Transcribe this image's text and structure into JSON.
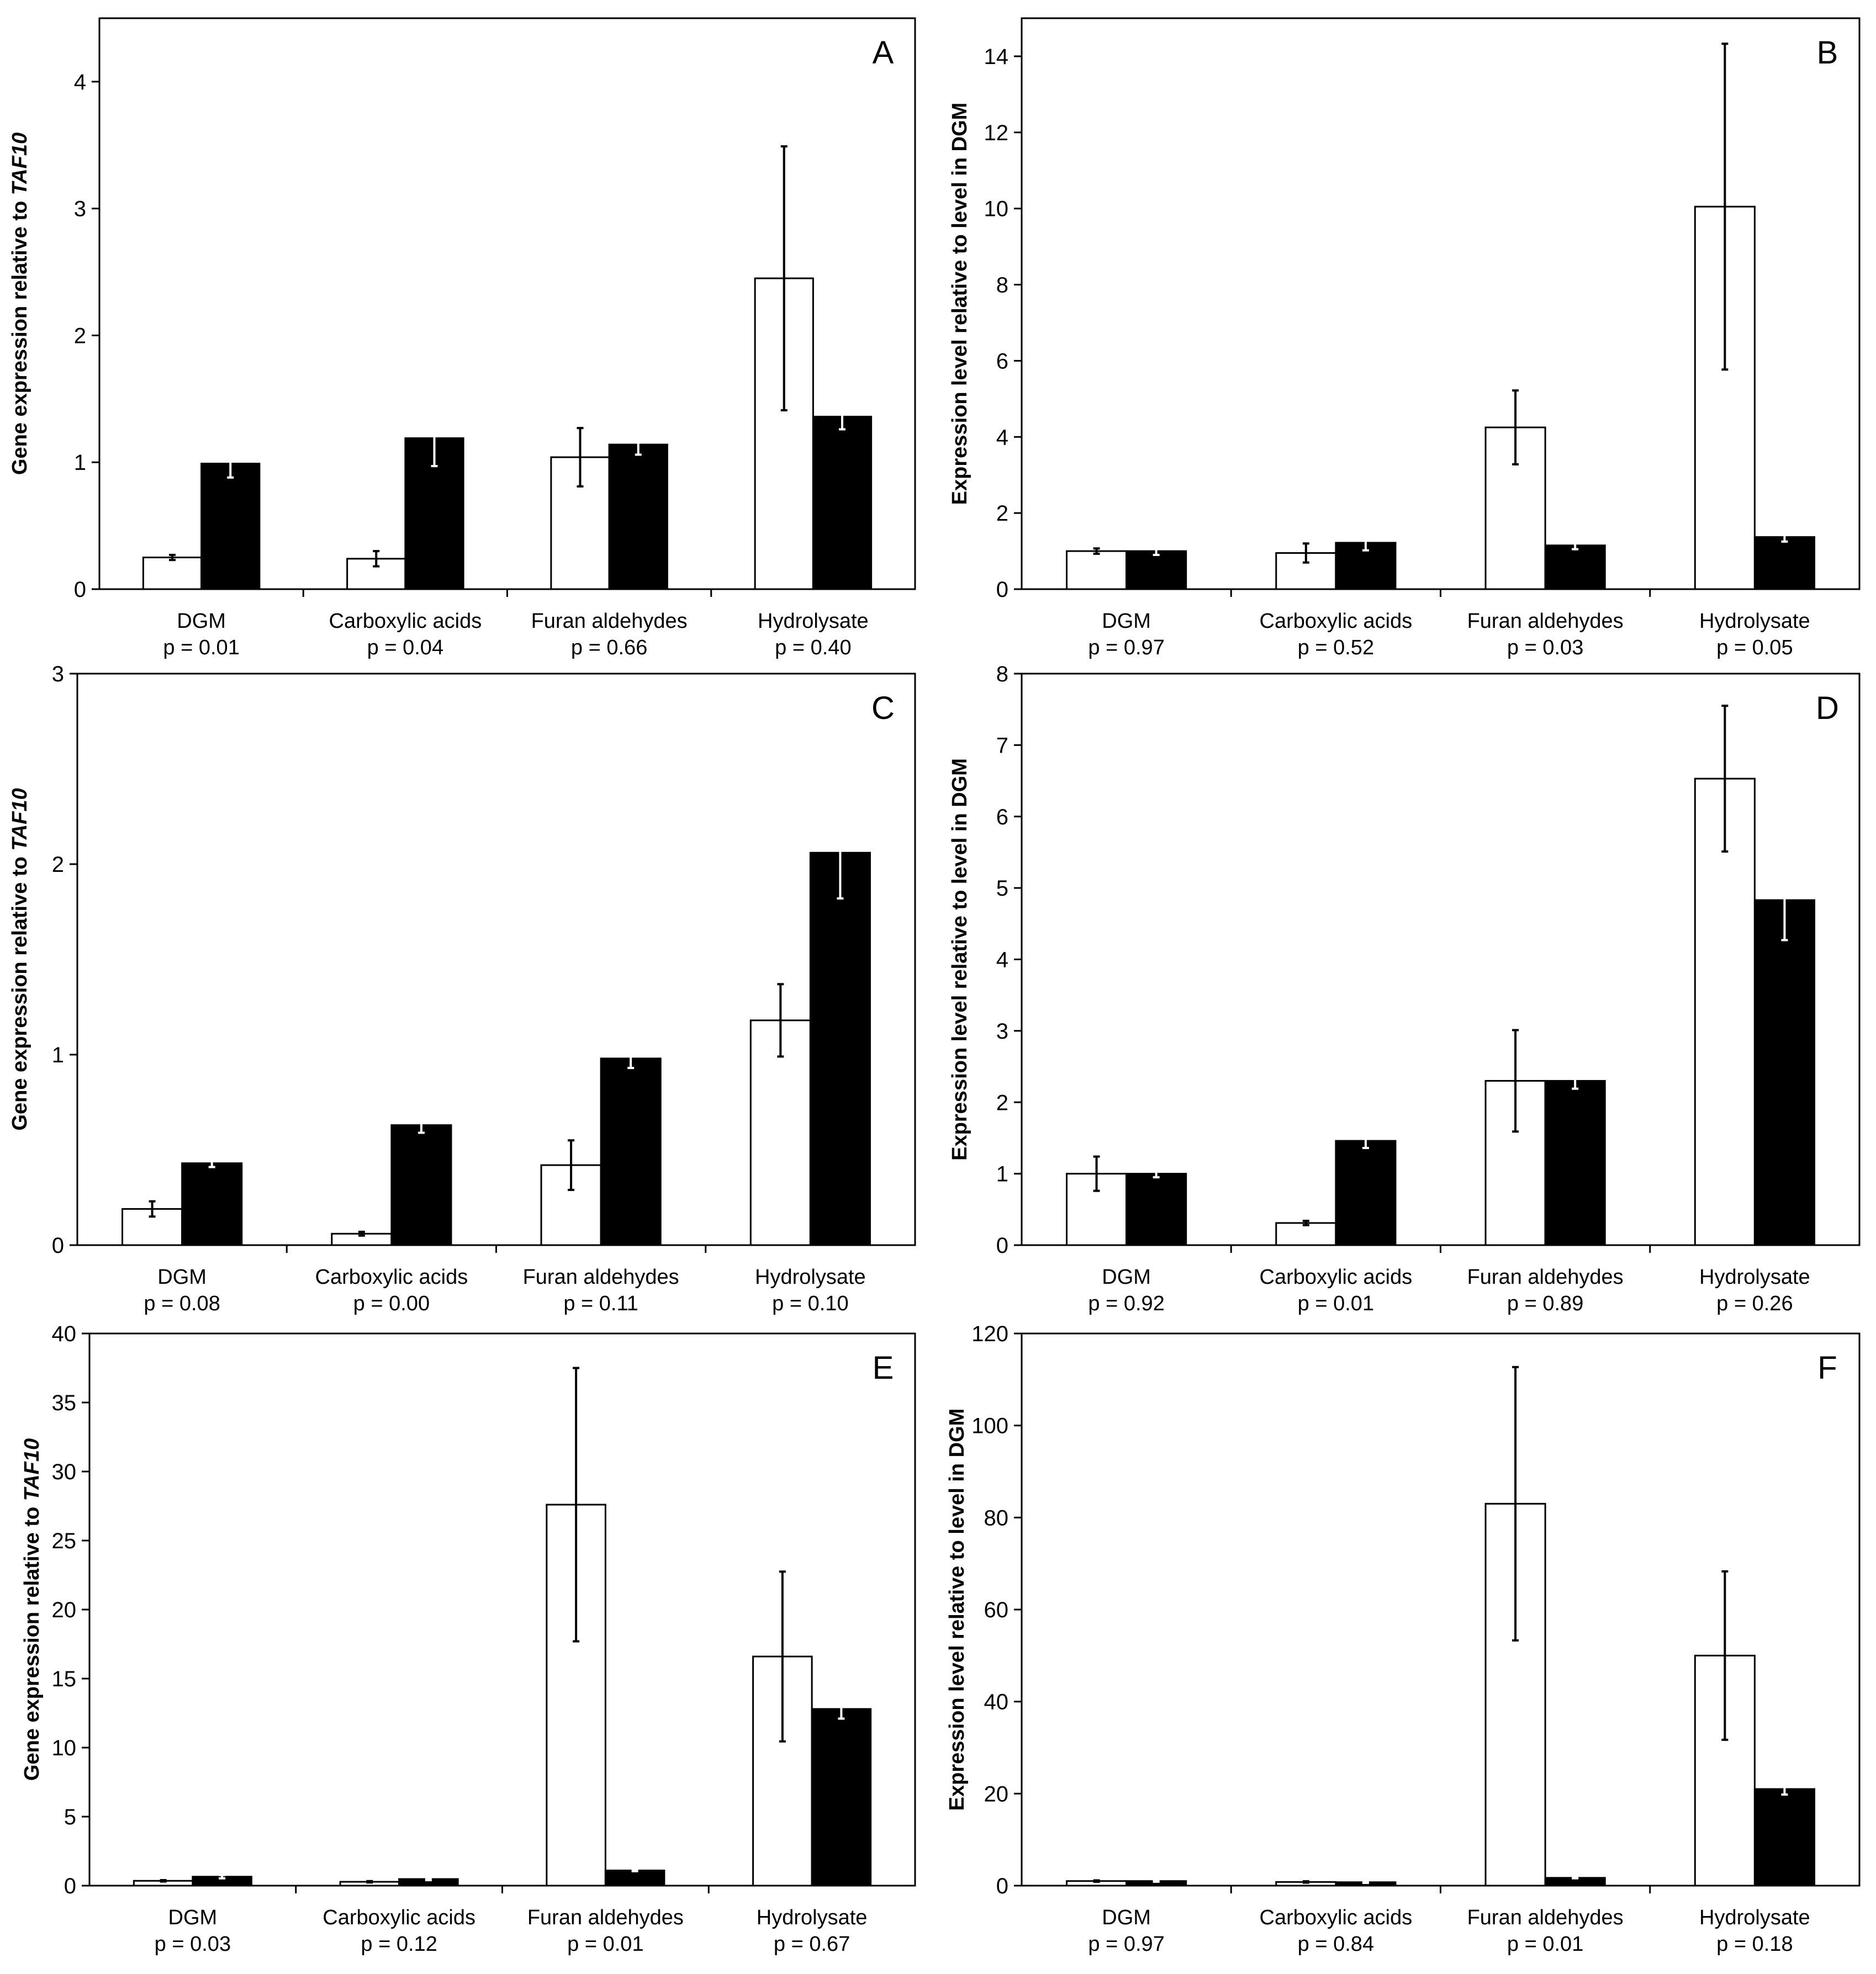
{
  "chart_data": [
    {
      "type": "bar",
      "panel": "A",
      "ylabel": "Gene expression relative to TAF10",
      "ylabel_plain": "Gene expression relative to ",
      "ylabel_italic": "TAF10",
      "ylim": [
        0,
        4.5
      ],
      "yticks": [
        0,
        1,
        2,
        3,
        4
      ],
      "categories": [
        "DGM",
        "Carboxylic acids",
        "Furan aldehydes",
        "Hydrolysate"
      ],
      "pvalues": [
        "p = 0.01",
        "p = 0.04",
        "p = 0.66",
        "p = 0.40"
      ],
      "series": [
        {
          "name": "white",
          "fill": "#ffffff",
          "values": [
            0.25,
            0.24,
            1.04,
            2.45
          ],
          "errors": [
            0.02,
            0.06,
            0.23,
            1.04
          ]
        },
        {
          "name": "black",
          "fill": "#000000",
          "values": [
            0.99,
            1.19,
            1.14,
            1.36
          ],
          "errors": [
            0.11,
            0.22,
            0.08,
            0.1
          ]
        }
      ]
    },
    {
      "type": "bar",
      "panel": "B",
      "ylabel": "Expression level relative to level in DGM",
      "ylim": [
        0,
        15
      ],
      "yticks": [
        0,
        2,
        4,
        6,
        8,
        10,
        12,
        14
      ],
      "categories": [
        "DGM",
        "Carboxylic acids",
        "Furan aldehydes",
        "Hydrolysate"
      ],
      "pvalues": [
        "p = 0.97",
        "p = 0.52",
        "p = 0.03",
        "p = 0.05"
      ],
      "series": [
        {
          "name": "white",
          "fill": "#ffffff",
          "values": [
            1.0,
            0.95,
            4.25,
            10.05
          ],
          "errors": [
            0.07,
            0.25,
            0.97,
            4.28
          ]
        },
        {
          "name": "black",
          "fill": "#000000",
          "values": [
            1.0,
            1.22,
            1.15,
            1.37
          ],
          "errors": [
            0.1,
            0.2,
            0.1,
            0.12
          ]
        }
      ]
    },
    {
      "type": "bar",
      "panel": "C",
      "ylabel": "Gene expression relative to TAF10",
      "ylabel_plain": "Gene expression relative to ",
      "ylabel_italic": "TAF10",
      "ylim": [
        0,
        3
      ],
      "yticks": [
        0,
        1,
        2,
        3
      ],
      "categories": [
        "DGM",
        "Carboxylic acids",
        "Furan aldehydes",
        "Hydrolysate"
      ],
      "pvalues": [
        "p = 0.08",
        "p = 0.00",
        "p = 0.11",
        "p = 0.10"
      ],
      "series": [
        {
          "name": "white",
          "fill": "#ffffff",
          "values": [
            0.19,
            0.06,
            0.42,
            1.18
          ],
          "errors": [
            0.04,
            0.01,
            0.13,
            0.19
          ]
        },
        {
          "name": "black",
          "fill": "#000000",
          "values": [
            0.43,
            0.63,
            0.98,
            2.06
          ],
          "errors": [
            0.02,
            0.04,
            0.05,
            0.24
          ]
        }
      ]
    },
    {
      "type": "bar",
      "panel": "D",
      "ylabel": "Expression level relative to level in DGM",
      "ylim": [
        0,
        8
      ],
      "yticks": [
        0,
        1,
        2,
        3,
        4,
        5,
        6,
        7,
        8
      ],
      "categories": [
        "DGM",
        "Carboxylic acids",
        "Furan aldehydes",
        "Hydrolysate"
      ],
      "pvalues": [
        "p = 0.92",
        "p = 0.01",
        "p = 0.89",
        "p = 0.26"
      ],
      "series": [
        {
          "name": "white",
          "fill": "#ffffff",
          "values": [
            1.0,
            0.31,
            2.3,
            6.53
          ],
          "errors": [
            0.24,
            0.03,
            0.71,
            1.02
          ]
        },
        {
          "name": "black",
          "fill": "#000000",
          "values": [
            1.0,
            1.46,
            2.3,
            4.83
          ],
          "errors": [
            0.05,
            0.1,
            0.11,
            0.56
          ]
        }
      ]
    },
    {
      "type": "bar",
      "panel": "E",
      "ylabel": "Gene expression relative to TAF10",
      "ylabel_plain": "Gene expression relative to ",
      "ylabel_italic": "TAF10",
      "ylim": [
        0,
        40
      ],
      "yticks": [
        0,
        5,
        10,
        15,
        20,
        25,
        30,
        35,
        40
      ],
      "categories": [
        "DGM",
        "Carboxylic acids",
        "Furan aldehydes",
        "Hydrolysate"
      ],
      "pvalues": [
        "p = 0.03",
        "p = 0.12",
        "p = 0.01",
        "p = 0.67"
      ],
      "series": [
        {
          "name": "white",
          "fill": "#ffffff",
          "values": [
            0.35,
            0.28,
            27.6,
            16.6
          ],
          "errors": [
            0.05,
            0.05,
            9.9,
            6.15
          ]
        },
        {
          "name": "black",
          "fill": "#000000",
          "values": [
            0.65,
            0.48,
            1.1,
            12.8
          ],
          "errors": [
            0.12,
            0.08,
            0.05,
            0.7
          ]
        }
      ]
    },
    {
      "type": "bar",
      "panel": "F",
      "ylabel": "Expression level relative to level in DGM",
      "ylim": [
        0,
        120
      ],
      "yticks": [
        0,
        20,
        40,
        60,
        80,
        100,
        120
      ],
      "categories": [
        "DGM",
        "Carboxylic acids",
        "Furan aldehydes",
        "Hydrolysate"
      ],
      "pvalues": [
        "p = 0.97",
        "p = 0.84",
        "p = 0.01",
        "p = 0.18"
      ],
      "series": [
        {
          "name": "white",
          "fill": "#ffffff",
          "values": [
            1.0,
            0.8,
            83.0,
            50.0
          ],
          "errors": [
            0.15,
            0.15,
            29.7,
            18.3
          ]
        },
        {
          "name": "black",
          "fill": "#000000",
          "values": [
            1.0,
            0.75,
            1.7,
            21.0
          ],
          "errors": [
            0.15,
            0.15,
            0.1,
            1.2
          ]
        }
      ]
    }
  ]
}
